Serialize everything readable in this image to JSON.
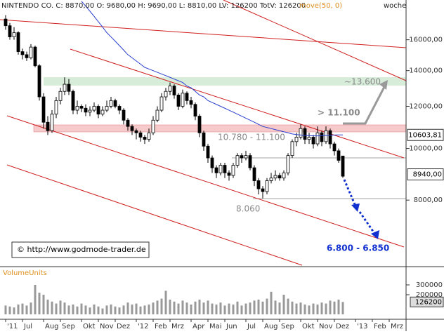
{
  "chart_data": {
    "type": "candlestick",
    "header": "NINTENDO CO. C: 8870,00 O: 9680,00 H: 9690,00 L: 8810,00 LV: 126200 TotV: 126200",
    "indicator": "move(50, 0)",
    "period": "woche",
    "log_scale": true,
    "up_color": "#ffffff",
    "down_color": "#000000",
    "categories": [
      "'11",
      null,
      null,
      null,
      "Jul",
      null,
      null,
      null,
      null,
      "Aug",
      null,
      null,
      null,
      "Sep",
      null,
      null,
      null,
      null,
      "Okt",
      null,
      null,
      null,
      "Nov",
      null,
      null,
      null,
      "Dez",
      null,
      null,
      null,
      null,
      "'12",
      null,
      null,
      null,
      "Feb",
      null,
      null,
      null,
      "Mrz",
      null,
      null,
      null,
      null,
      "Apr",
      null,
      null,
      null,
      "Mai",
      null,
      null,
      null,
      "Jun",
      null,
      null,
      null,
      null,
      "Jul",
      null,
      null,
      null,
      "Aug",
      null,
      null,
      null,
      "Sep",
      null,
      null,
      null,
      null,
      "Okt",
      null,
      null,
      null,
      "Nov",
      null,
      null,
      null,
      "Dez",
      null,
      null,
      null,
      null,
      "'13",
      null,
      null,
      null,
      "Feb",
      null,
      null,
      null,
      "Mrz"
    ],
    "open": [
      17500,
      17000,
      16200,
      16500,
      15200,
      15000,
      14800,
      15500,
      14300,
      12500,
      11200,
      10800,
      11600,
      12300,
      12800,
      13200,
      12800,
      11800,
      12000,
      11900,
      11700,
      11800,
      12000,
      11600,
      11800,
      12000,
      12300,
      12000,
      11800,
      11300,
      11000,
      10800,
      10700,
      10500,
      10400,
      10700,
      11300,
      11800,
      12500,
      12800,
      13100,
      12600,
      12000,
      12700,
      12300,
      12100,
      11500,
      10700,
      10100,
      9600,
      9200,
      9000,
      9300,
      9000,
      8900,
      9300,
      9700,
      9600,
      9700,
      9200,
      8700,
      8400,
      8300,
      8700,
      8800,
      8900,
      8800,
      9000,
      9700,
      10300,
      10500,
      10900,
      10400,
      10500,
      10200,
      10700,
      10300,
      10800,
      10200,
      9900,
      9680,
      null,
      null,
      null,
      null,
      null,
      null,
      null,
      null,
      null,
      null,
      null
    ],
    "high": [
      17800,
      17200,
      16900,
      16600,
      15400,
      15200,
      15700,
      15600,
      14400,
      12700,
      11500,
      11800,
      12500,
      13000,
      13600,
      13500,
      12900,
      12300,
      12100,
      12100,
      12000,
      12200,
      12100,
      12000,
      12300,
      12500,
      12400,
      12100,
      11900,
      11400,
      11100,
      10900,
      10800,
      10600,
      10900,
      11500,
      12000,
      12700,
      13000,
      13300,
      13200,
      12700,
      12900,
      12800,
      12500,
      12200,
      11600,
      10800,
      10200,
      9700,
      9300,
      9400,
      9400,
      9100,
      9400,
      9800,
      9800,
      9900,
      9800,
      9300,
      8800,
      8500,
      8800,
      9000,
      9100,
      9000,
      9100,
      9800,
      10400,
      10700,
      11100,
      11000,
      10700,
      10600,
      11000,
      10800,
      11000,
      10900,
      10300,
      10000,
      9690,
      null,
      null,
      null,
      null,
      null,
      null,
      null,
      null,
      null,
      null,
      null
    ],
    "low": [
      16700,
      16000,
      16000,
      15000,
      14700,
      14600,
      14700,
      14200,
      12300,
      10900,
      10600,
      10700,
      11400,
      12100,
      12600,
      12600,
      11600,
      11600,
      11700,
      11500,
      11500,
      11700,
      11400,
      11500,
      11700,
      11900,
      11900,
      11600,
      11100,
      10800,
      10600,
      10400,
      10300,
      10200,
      10300,
      10600,
      11200,
      11700,
      12300,
      12600,
      12400,
      11800,
      11900,
      12100,
      11900,
      11300,
      10500,
      9900,
      9400,
      9000,
      8800,
      8900,
      8800,
      8700,
      8800,
      9200,
      9400,
      9500,
      9100,
      8500,
      8200,
      8060,
      8200,
      8600,
      8700,
      8700,
      8700,
      8900,
      9600,
      10100,
      10400,
      10200,
      10200,
      10000,
      10100,
      10100,
      10200,
      10000,
      9700,
      9400,
      8810,
      null,
      null,
      null,
      null,
      null,
      null,
      null,
      null,
      null,
      null,
      null
    ],
    "close": [
      17000,
      16200,
      16500,
      15200,
      15000,
      14800,
      15500,
      14300,
      12500,
      11200,
      10800,
      11600,
      12300,
      12800,
      13200,
      12800,
      11800,
      12000,
      11900,
      11700,
      11800,
      12000,
      11600,
      11800,
      12000,
      12300,
      12000,
      11800,
      11300,
      11000,
      10800,
      10700,
      10500,
      10400,
      10700,
      11300,
      11800,
      12500,
      12800,
      13100,
      12600,
      12000,
      12700,
      12300,
      12100,
      11500,
      10700,
      10100,
      9600,
      9200,
      9000,
      9300,
      9000,
      8900,
      9300,
      9700,
      9600,
      9700,
      9200,
      8700,
      8400,
      8300,
      8700,
      8800,
      8900,
      8800,
      9000,
      9700,
      10300,
      10500,
      10900,
      10400,
      10500,
      10200,
      10700,
      10300,
      10800,
      10200,
      9900,
      9500,
      8870,
      null,
      null,
      null,
      null,
      null,
      null,
      null,
      null,
      null,
      null,
      null
    ],
    "moving_average": {
      "name": "move(50, 0)",
      "color": "#2a3fd0",
      "values": [
        null,
        null,
        null,
        null,
        null,
        null,
        null,
        null,
        null,
        null,
        null,
        null,
        null,
        null,
        null,
        null,
        null,
        null,
        18900,
        18500,
        18100,
        17700,
        17300,
        16900,
        16500,
        16200,
        15900,
        15600,
        15300,
        15000,
        14800,
        14600,
        14400,
        14200,
        14100,
        14000,
        13900,
        13800,
        13700,
        13600,
        13500,
        13400,
        13300,
        13100,
        13000,
        12800,
        12600,
        12500,
        12300,
        12200,
        12100,
        12000,
        11900,
        11800,
        11700,
        11600,
        11500,
        11400,
        11300,
        11200,
        11100,
        11000,
        10950,
        10900,
        10850,
        10800,
        10750,
        10700,
        10650,
        10620,
        10600,
        10580,
        10570,
        10560,
        10560,
        10570,
        10580,
        10590,
        10600,
        10605,
        10603.81,
        null,
        null,
        null,
        null,
        null,
        null,
        null,
        null,
        null,
        null,
        null
      ]
    },
    "ylim": [
      6000,
      19000
    ],
    "yticks": [
      {
        "value": 8000,
        "label": "8000,00"
      },
      {
        "value": 10000,
        "label": "10000,00"
      },
      {
        "value": 12000,
        "label": "12000,00"
      },
      {
        "value": 14000,
        "label": "14000,00"
      },
      {
        "value": 16000,
        "label": "16000,00"
      }
    ],
    "price_labels": [
      {
        "value": 10603.81,
        "label": "10603,81"
      },
      {
        "value": 8940,
        "label": "8940,00"
      }
    ],
    "volume": {
      "name": "VolumeUnits",
      "color": "#999999",
      "values": [
        90000,
        80000,
        70000,
        100000,
        110000,
        90000,
        120000,
        300000,
        220000,
        200000,
        150000,
        130000,
        110000,
        140000,
        120000,
        90000,
        100000,
        80000,
        110000,
        90000,
        70000,
        100000,
        80000,
        60000,
        90000,
        100000,
        80000,
        70000,
        90000,
        120000,
        100000,
        110000,
        80000,
        90000,
        100000,
        120000,
        140000,
        160000,
        240000,
        150000,
        130000,
        110000,
        140000,
        120000,
        100000,
        130000,
        150000,
        120000,
        140000,
        110000,
        100000,
        120000,
        90000,
        110000,
        100000,
        130000,
        90000,
        110000,
        120000,
        140000,
        150000,
        130000,
        160000,
        230000,
        140000,
        120000,
        200000,
        160000,
        130000,
        110000,
        120000,
        100000,
        90000,
        110000,
        100000,
        120000,
        110000,
        140000,
        130000,
        150000,
        126200,
        null,
        null,
        null,
        null,
        null,
        null,
        null,
        null,
        null,
        null,
        null
      ],
      "ylim": [
        0,
        400000
      ],
      "yticks": [
        200000,
        300000
      ],
      "last_label": {
        "value": 126200,
        "label": "126200"
      }
    },
    "annotations": {
      "target_high": "~13.600",
      "breakout": "> 11.100",
      "resistance": "10.780 - 11.100",
      "low": "8.060",
      "target_low": "6.800 - 6.850",
      "source": "© http://www.godmode-trader.de"
    }
  }
}
